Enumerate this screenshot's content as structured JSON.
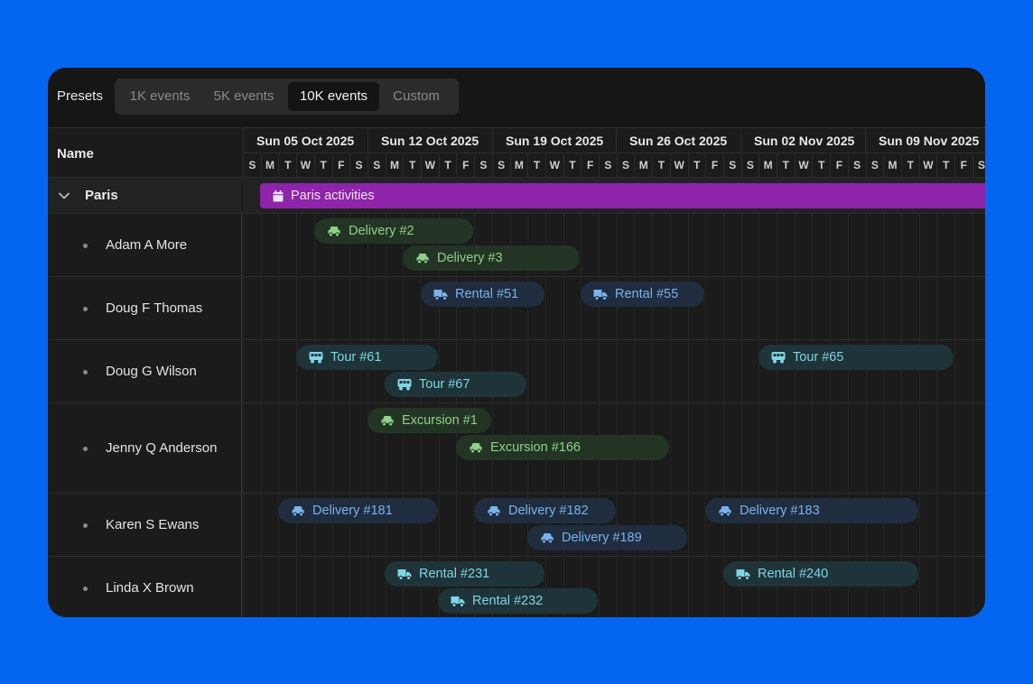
{
  "toolbar": {
    "presets_label": "Presets",
    "presets": [
      "1K events",
      "5K events",
      "10K events",
      "Custom"
    ],
    "active_preset": "10K events"
  },
  "columns": {
    "name_header": "Name"
  },
  "timeline": {
    "weeks": [
      "Sun 05 Oct 2025",
      "Sun 12 Oct 2025",
      "Sun 19 Oct 2025",
      "Sun 26 Oct 2025",
      "Sun 02 Nov 2025",
      "Sun 09 Nov 2025"
    ],
    "days": [
      "S",
      "M",
      "T",
      "W",
      "T",
      "F",
      "S"
    ]
  },
  "group": {
    "name": "Paris",
    "bar_label": "Paris activities",
    "bar_icon": "calendar-icon",
    "color": "#8e24aa"
  },
  "resources": [
    {
      "name": "Adam A More"
    },
    {
      "name": "Doug F Thomas"
    },
    {
      "name": "Doug G Wilson"
    },
    {
      "name": "Jenny Q Anderson"
    },
    {
      "name": "Karen S Ewans"
    },
    {
      "name": "Linda X Brown"
    }
  ],
  "events": {
    "e1": {
      "label": "Delivery #2",
      "icon": "car-icon"
    },
    "e2": {
      "label": "Delivery #3",
      "icon": "car-icon"
    },
    "e3": {
      "label": "Rental #51",
      "icon": "truck-icon"
    },
    "e4": {
      "label": "Rental #55",
      "icon": "truck-icon"
    },
    "e5": {
      "label": "Tour #61",
      "icon": "bus-icon"
    },
    "e6": {
      "label": "Tour #65",
      "icon": "bus-icon"
    },
    "e7": {
      "label": "Tour #67",
      "icon": "bus-icon"
    },
    "e8": {
      "label": "Excursion #1",
      "icon": "car-icon"
    },
    "e9": {
      "label": "Excursion #166",
      "icon": "car-icon"
    },
    "e10": {
      "label": "Delivery #181",
      "icon": "car-icon"
    },
    "e11": {
      "label": "Delivery #182",
      "icon": "car-icon"
    },
    "e12": {
      "label": "Delivery #183",
      "icon": "car-icon"
    },
    "e13": {
      "label": "Delivery #189",
      "icon": "car-icon"
    },
    "e14": {
      "label": "Rental #231",
      "icon": "truck-icon"
    },
    "e15": {
      "label": "Rental #240",
      "icon": "truck-icon"
    },
    "e16": {
      "label": "Rental #232",
      "icon": "truck-icon"
    }
  },
  "colors": {
    "background": "#0466f0",
    "panel": "#1b1b1b",
    "green_event": "#233424",
    "blue_event": "#1f2d3e",
    "teal_event": "#1f3438"
  }
}
